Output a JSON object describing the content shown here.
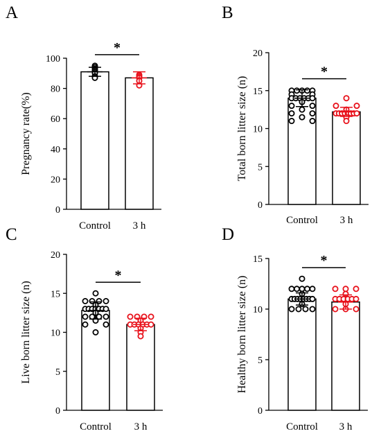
{
  "chart_data": [
    {
      "panel": "A",
      "type": "bar",
      "ylabel": "Pregnancy rate(%)",
      "ylim": [
        0,
        100
      ],
      "yticks": [
        0,
        20,
        40,
        60,
        80,
        100
      ],
      "categories": [
        "Control",
        "3 h"
      ],
      "values": [
        91,
        87
      ],
      "errors": [
        3,
        4
      ],
      "colors": [
        "#000000",
        "#e8101a"
      ],
      "points": [
        [
          95,
          94,
          93,
          92,
          91,
          90,
          88,
          87
        ],
        [
          89,
          88,
          87,
          85,
          82
        ]
      ],
      "significance": "*"
    },
    {
      "panel": "B",
      "type": "bar",
      "ylabel": "Total born litter size (n)",
      "ylim": [
        0,
        20
      ],
      "yticks": [
        0,
        5,
        10,
        15,
        20
      ],
      "categories": [
        "Control",
        "3 h"
      ],
      "values": [
        14,
        12.2
      ],
      "errors": [
        1.1,
        0.6
      ],
      "colors": [
        "#000000",
        "#e8101a"
      ],
      "points": [
        [
          15,
          15,
          15,
          15,
          15,
          14.5,
          14.5,
          14,
          14,
          14,
          14,
          14,
          14,
          13.5,
          13,
          13,
          12.5,
          12,
          12,
          11.5,
          11,
          11
        ],
        [
          14,
          13,
          13,
          12.5,
          12,
          12,
          12,
          12,
          12,
          12,
          12,
          12,
          11.5,
          11
        ]
      ],
      "significance": "*"
    },
    {
      "panel": "C",
      "type": "bar",
      "ylabel": "Live born litter size (n)",
      "ylim": [
        0,
        20
      ],
      "yticks": [
        0,
        5,
        10,
        15,
        20
      ],
      "categories": [
        "Control",
        "3 h"
      ],
      "values": [
        12.8,
        11
      ],
      "errors": [
        1.1,
        0.8
      ],
      "colors": [
        "#000000",
        "#e8101a"
      ],
      "points": [
        [
          15,
          14,
          14,
          14,
          14,
          13.5,
          13,
          13,
          13,
          13,
          13,
          13,
          13,
          12.5,
          12,
          12,
          12,
          12,
          11.5,
          11,
          11,
          10
        ],
        [
          12,
          12,
          12,
          12,
          11.5,
          11,
          11,
          11,
          11,
          11,
          11,
          10.5,
          10,
          9.5
        ]
      ],
      "significance": "*"
    },
    {
      "panel": "D",
      "type": "bar",
      "ylabel": "Healthy born litter size (n)",
      "ylim": [
        0,
        15
      ],
      "yticks": [
        0,
        5,
        10,
        15
      ],
      "categories": [
        "Control",
        "3 h"
      ],
      "values": [
        11,
        10.7
      ],
      "errors": [
        0.6,
        0.7
      ],
      "colors": [
        "#000000",
        "#e8101a"
      ],
      "points": [
        [
          13,
          12,
          12,
          12,
          12,
          12,
          11.5,
          11,
          11,
          11,
          11,
          11,
          11,
          11,
          11,
          10.5,
          10,
          10,
          10,
          10
        ],
        [
          12,
          12,
          12,
          11.5,
          11,
          11,
          11,
          11,
          11,
          11,
          10.5,
          10,
          10,
          10
        ]
      ],
      "significance": "*"
    }
  ]
}
